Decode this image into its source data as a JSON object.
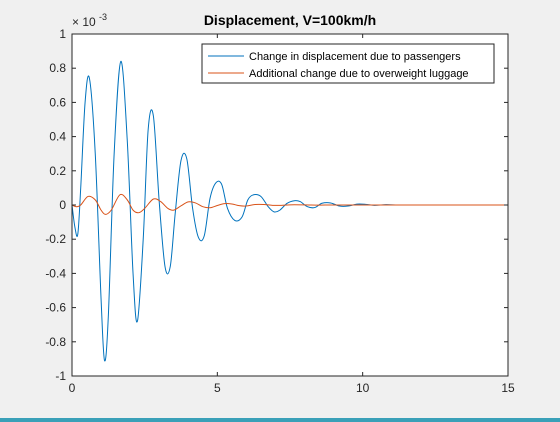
{
  "figure": {
    "background": "#f0f0f0",
    "axes_background": "#ffffff",
    "strip_color": "#3aa0b8"
  },
  "chart_data": {
    "type": "line",
    "title": "Displacement, V=100km/h",
    "xlabel": "",
    "ylabel": "",
    "xlim": [
      0,
      15
    ],
    "ylim": [
      -1,
      1
    ],
    "y_exponent_label": "× 10",
    "y_exponent_power": "-3",
    "xticks": [
      "0",
      "5",
      "10",
      "15"
    ],
    "yticks": [
      "-1",
      "-0.8",
      "-0.6",
      "-0.4",
      "-0.2",
      "0",
      "0.2",
      "0.4",
      "0.6",
      "0.8",
      "1"
    ],
    "grid": false,
    "legend_position": "top-right",
    "series": [
      {
        "name": "Change in displacement due to passengers",
        "color": "#0072bd",
        "x": [
          0,
          0.1,
          0.2,
          0.3,
          0.45,
          0.6,
          0.8,
          1.0,
          1.12,
          1.25,
          1.45,
          1.68,
          1.9,
          2.1,
          2.25,
          2.45,
          2.62,
          2.8,
          3.0,
          3.2,
          3.38,
          3.55,
          3.75,
          3.95,
          4.15,
          4.35,
          4.55,
          4.75,
          4.95,
          5.15,
          5.35,
          5.6,
          5.85,
          6.05,
          6.25,
          6.5,
          6.75,
          6.95,
          7.15,
          7.4,
          7.65,
          7.85,
          8.1,
          8.35,
          8.6,
          8.9,
          9.2,
          9.5,
          9.8,
          10.1,
          10.4,
          10.8,
          11.2,
          11.6,
          12.0,
          13.0,
          14.0,
          15.0
        ],
        "values": [
          0,
          -0.13,
          -0.17,
          0.1,
          0.6,
          0.74,
          0.3,
          -0.55,
          -0.91,
          -0.65,
          0.3,
          0.84,
          0.38,
          -0.4,
          -0.68,
          -0.2,
          0.44,
          0.52,
          0.02,
          -0.36,
          -0.36,
          -0.05,
          0.26,
          0.27,
          -0.02,
          -0.19,
          -0.18,
          0.04,
          0.13,
          0.12,
          -0.02,
          -0.09,
          -0.07,
          0.03,
          0.06,
          0.05,
          -0.01,
          -0.04,
          -0.03,
          0.01,
          0.025,
          0.02,
          -0.01,
          -0.015,
          0.01,
          0.012,
          -0.006,
          -0.006,
          0.005,
          0.004,
          -0.002,
          0.002,
          0,
          0,
          0,
          0,
          0,
          0
        ]
      },
      {
        "name": "Additional change due to overweight luggage",
        "color": "#d95319",
        "x": [
          0,
          0.15,
          0.3,
          0.55,
          0.8,
          1.0,
          1.15,
          1.35,
          1.65,
          1.9,
          2.1,
          2.3,
          2.5,
          2.8,
          3.05,
          3.3,
          3.5,
          3.75,
          4.0,
          4.25,
          4.5,
          4.75,
          5.0,
          5.25,
          5.5,
          5.75,
          6.0,
          6.3,
          6.6,
          6.9,
          7.2,
          7.5,
          8.0,
          8.5,
          9.0,
          10.0,
          11.0,
          12.0,
          13.0,
          14.0,
          15.0
        ],
        "values": [
          0,
          -0.01,
          0.0,
          0.05,
          0.03,
          -0.03,
          -0.055,
          -0.03,
          0.06,
          0.03,
          -0.03,
          -0.045,
          -0.02,
          0.035,
          0.02,
          -0.02,
          -0.03,
          -0.005,
          0.018,
          0.012,
          -0.01,
          -0.016,
          -0.003,
          0.008,
          0.006,
          -0.004,
          -0.006,
          0.003,
          0.003,
          -0.002,
          -0.002,
          0.001,
          0.0008,
          -0.0005,
          0,
          0,
          0,
          0,
          0,
          0,
          0
        ]
      }
    ]
  }
}
